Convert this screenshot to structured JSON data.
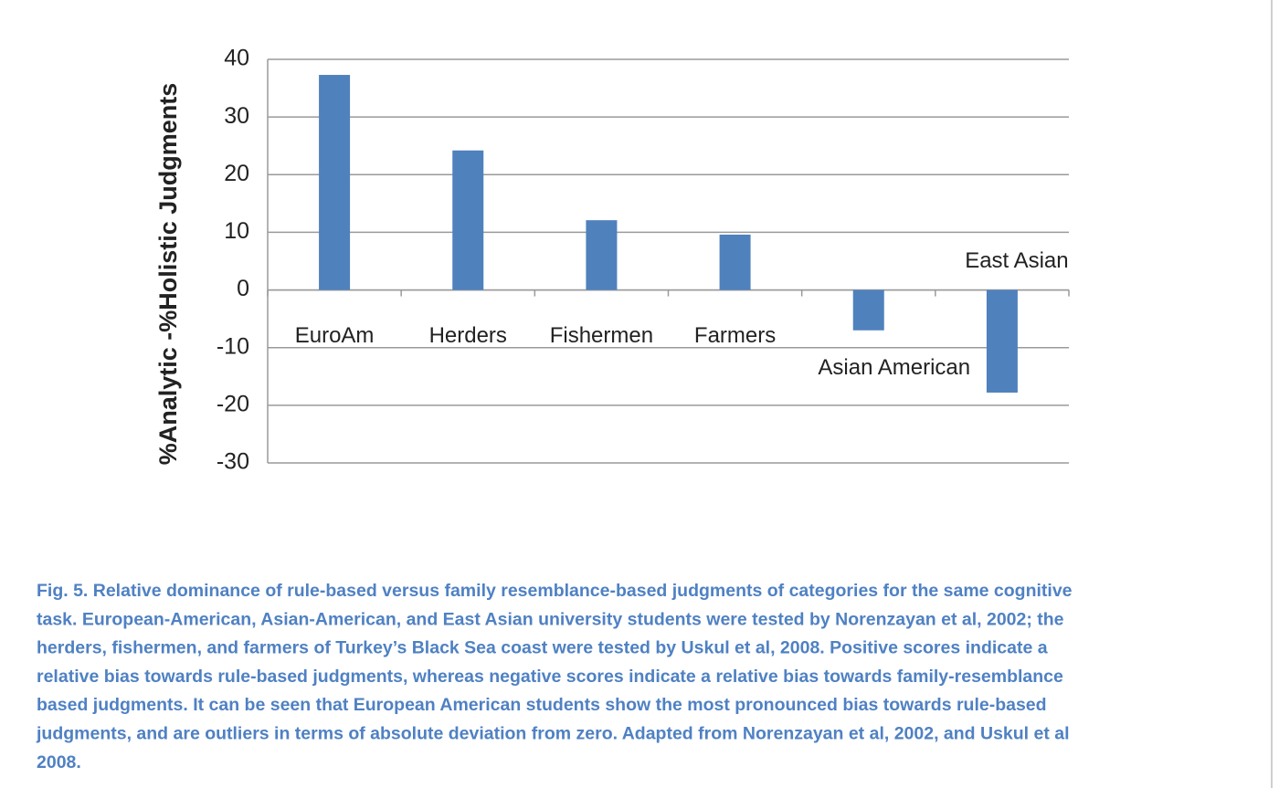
{
  "chart_data": {
    "type": "bar",
    "y_label": "%Analytic -%Holistic Judgments",
    "categories": [
      "EuroAm",
      "Herders",
      "Fishermen",
      "Farmers",
      "Asian American",
      "East Asian"
    ],
    "values": [
      37.3,
      24.2,
      12.1,
      9.6,
      -7.0,
      -17.8
    ],
    "color": "#4f81bd",
    "ylim": [
      -30,
      40
    ],
    "yticks": [
      -30,
      -20,
      -10,
      0,
      10,
      20,
      30,
      40
    ],
    "grid": true
  },
  "caption_lines": [
    "Fig. 5. Relative dominance of rule-based versus family resemblance-based judgments of categories for the same cognitive",
    "task. European-American, Asian-American, and East Asian university students were tested by Norenzayan et al, 2002; the",
    "herders, fishermen, and farmers of Turkey’s Black Sea coast were tested by Uskul et al, 2008. Positive scores indicate a",
    "relative bias towards rule-based judgments, whereas negative scores indicate a relative bias towards family-resemblance",
    "based judgments. It can be seen that European American students show the most pronounced bias towards rule-based",
    "judgments, and are outliers in terms of absolute deviation from zero. Adapted from Norenzayan et al, 2002, and Uskul et al",
    "2008."
  ]
}
